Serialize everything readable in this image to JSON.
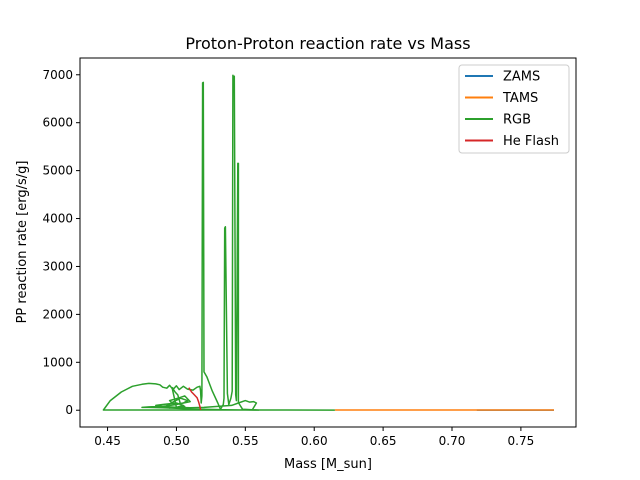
{
  "chart_data": {
    "type": "line",
    "title": "Proton-Proton reaction rate vs Mass",
    "xlabel": "Mass [M_sun]",
    "ylabel": "PP reaction rate [erg/s/g]",
    "xlim": [
      0.43,
      0.79
    ],
    "ylim": [
      -350,
      7350
    ],
    "xticks": [
      0.45,
      0.5,
      0.55,
      0.6,
      0.65,
      0.7,
      0.75
    ],
    "xtick_labels": [
      "0.45",
      "0.50",
      "0.55",
      "0.60",
      "0.65",
      "0.70",
      "0.75"
    ],
    "yticks": [
      0,
      1000,
      2000,
      3000,
      4000,
      5000,
      6000,
      7000
    ],
    "ytick_labels": [
      "0",
      "1000",
      "2000",
      "3000",
      "4000",
      "5000",
      "6000",
      "7000"
    ],
    "grid": false,
    "legend_position": "top-right",
    "series": [
      {
        "name": "ZAMS",
        "color": "#1f77b4",
        "x": [
          0.718,
          0.73,
          0.745,
          0.76,
          0.774
        ],
        "y": [
          3,
          3,
          3,
          3,
          3
        ]
      },
      {
        "name": "TAMS",
        "color": "#ff7f0e",
        "x": [
          0.615,
          0.65,
          0.7,
          0.74,
          0.774
        ],
        "y": [
          5,
          4,
          4,
          4,
          4
        ]
      },
      {
        "name": "RGB",
        "color": "#2ca02c",
        "x": [
          0.615,
          0.58,
          0.56,
          0.555,
          0.548,
          0.545,
          0.545,
          0.5445,
          0.5435,
          0.543,
          0.542,
          0.5415,
          0.541,
          0.5405,
          0.5395,
          0.538,
          0.537,
          0.5355,
          0.535,
          0.5345,
          0.534,
          0.532,
          0.53,
          0.526,
          0.522,
          0.52,
          0.5195,
          0.519,
          0.5185,
          0.518,
          0.5175,
          0.517,
          0.515,
          0.512,
          0.508,
          0.505,
          0.502,
          0.5,
          0.498,
          0.497,
          0.499,
          0.501,
          0.503,
          0.506,
          0.5,
          0.497,
          0.495,
          0.493,
          0.49,
          0.488,
          0.485,
          0.48,
          0.475,
          0.468,
          0.46,
          0.452,
          0.447,
          0.46,
          0.48,
          0.5,
          0.52,
          0.54,
          0.555,
          0.558,
          0.556,
          0.553,
          0.55,
          0.545,
          0.54,
          0.53,
          0.52,
          0.51,
          0.5,
          0.49,
          0.485,
          0.49,
          0.5,
          0.505,
          0.5,
          0.495,
          0.492,
          0.498,
          0.503,
          0.508,
          0.505,
          0.498,
          0.495,
          0.502,
          0.506,
          0.51,
          0.5,
          0.49,
          0.48,
          0.475,
          0.48,
          0.49,
          0.5,
          0.51,
          0.52,
          0.535,
          0.55,
          0.56
        ],
        "y": [
          3,
          4,
          5,
          10,
          20,
          160,
          5150,
          5150,
          200,
          320,
          6970,
          6950,
          6990,
          400,
          250,
          120,
          350,
          3830,
          3800,
          250,
          120,
          20,
          150,
          400,
          700,
          800,
          6840,
          6830,
          300,
          150,
          400,
          500,
          480,
          420,
          440,
          500,
          430,
          510,
          450,
          470,
          380,
          320,
          120,
          80,
          60,
          450,
          520,
          460,
          480,
          530,
          550,
          560,
          540,
          500,
          380,
          200,
          5,
          5,
          5,
          5,
          5,
          5,
          5,
          150,
          180,
          170,
          200,
          150,
          100,
          80,
          60,
          50,
          60,
          80,
          100,
          120,
          150,
          100,
          60,
          40,
          80,
          180,
          250,
          200,
          150,
          120,
          200,
          260,
          300,
          180,
          120,
          80,
          70,
          60,
          60,
          50,
          40,
          30,
          20,
          10,
          5,
          3
        ]
      },
      {
        "name": "He Flash",
        "color": "#d62728",
        "x": [
          0.509,
          0.511,
          0.513,
          0.515,
          0.516,
          0.517,
          0.5175
        ],
        "y": [
          470,
          380,
          320,
          260,
          180,
          80,
          5
        ]
      }
    ]
  }
}
